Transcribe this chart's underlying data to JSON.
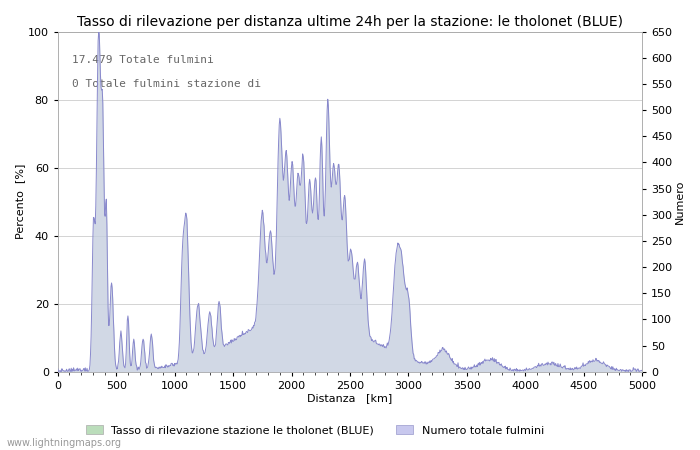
{
  "title": "Tasso di rilevazione per distanza ultime 24h per la stazione: le tholonet (BLUE)",
  "xlabel": "Distanza   [km]",
  "ylabel_left": "Percento  [%]",
  "ylabel_right": "Numero",
  "annotation_line1": "17.479 Totale fulmini",
  "annotation_line2": "0 Totale fulmini stazione di",
  "legend_label1": "Tasso di rilevazione stazione le tholonet (BLUE)",
  "legend_label2": "Numero totale fulmini",
  "watermark": "www.lightningmaps.org",
  "xlim": [
    0,
    5000
  ],
  "ylim_left": [
    0,
    100
  ],
  "ylim_right": [
    0,
    650
  ],
  "right_yticks": [
    0,
    50,
    100,
    150,
    200,
    250,
    300,
    350,
    400,
    450,
    500,
    550,
    600,
    650
  ],
  "left_yticks": [
    0,
    20,
    40,
    60,
    80,
    100
  ],
  "xticks": [
    0,
    500,
    1000,
    1500,
    2000,
    2500,
    3000,
    3500,
    4000,
    4500,
    5000
  ],
  "fill_color": "#c8c8ee",
  "fill_color_green": "#bbddbb",
  "line_color": "#8888cc",
  "background_color": "#ffffff",
  "grid_color": "#cccccc",
  "title_fontsize": 10,
  "label_fontsize": 8,
  "tick_fontsize": 8,
  "annotation_fontsize": 8
}
